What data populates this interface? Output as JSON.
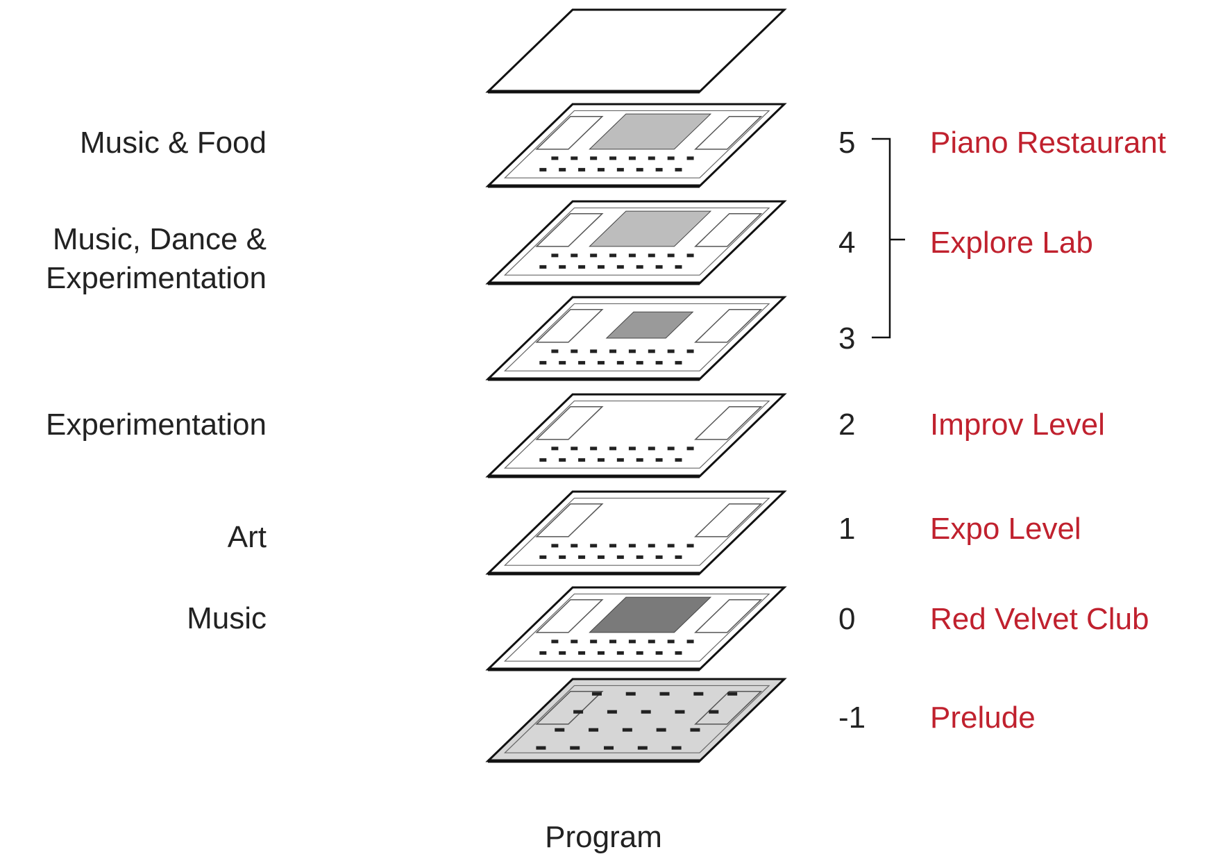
{
  "diagram": {
    "caption": "Program",
    "accent_color": "#c0212e",
    "floors": [
      {
        "number": "",
        "name": "",
        "category": "",
        "style": "roof"
      },
      {
        "number": "5",
        "name": "Piano Restaurant",
        "category": "Music & Food",
        "style": "hall"
      },
      {
        "number": "4",
        "name": "Explore Lab",
        "category": "Music, Dance & Experimentation",
        "style": "hall"
      },
      {
        "number": "3",
        "name": "",
        "category": "",
        "style": "seating"
      },
      {
        "number": "2",
        "name": "Improv Level",
        "category": "Experimentation",
        "style": "sparse"
      },
      {
        "number": "1",
        "name": "Expo Level",
        "category": "Art",
        "style": "sparse"
      },
      {
        "number": "0",
        "name": "Red Velvet Club",
        "category": "Music",
        "style": "club"
      },
      {
        "number": "-1",
        "name": "Prelude",
        "category": "",
        "style": "parking"
      }
    ]
  }
}
